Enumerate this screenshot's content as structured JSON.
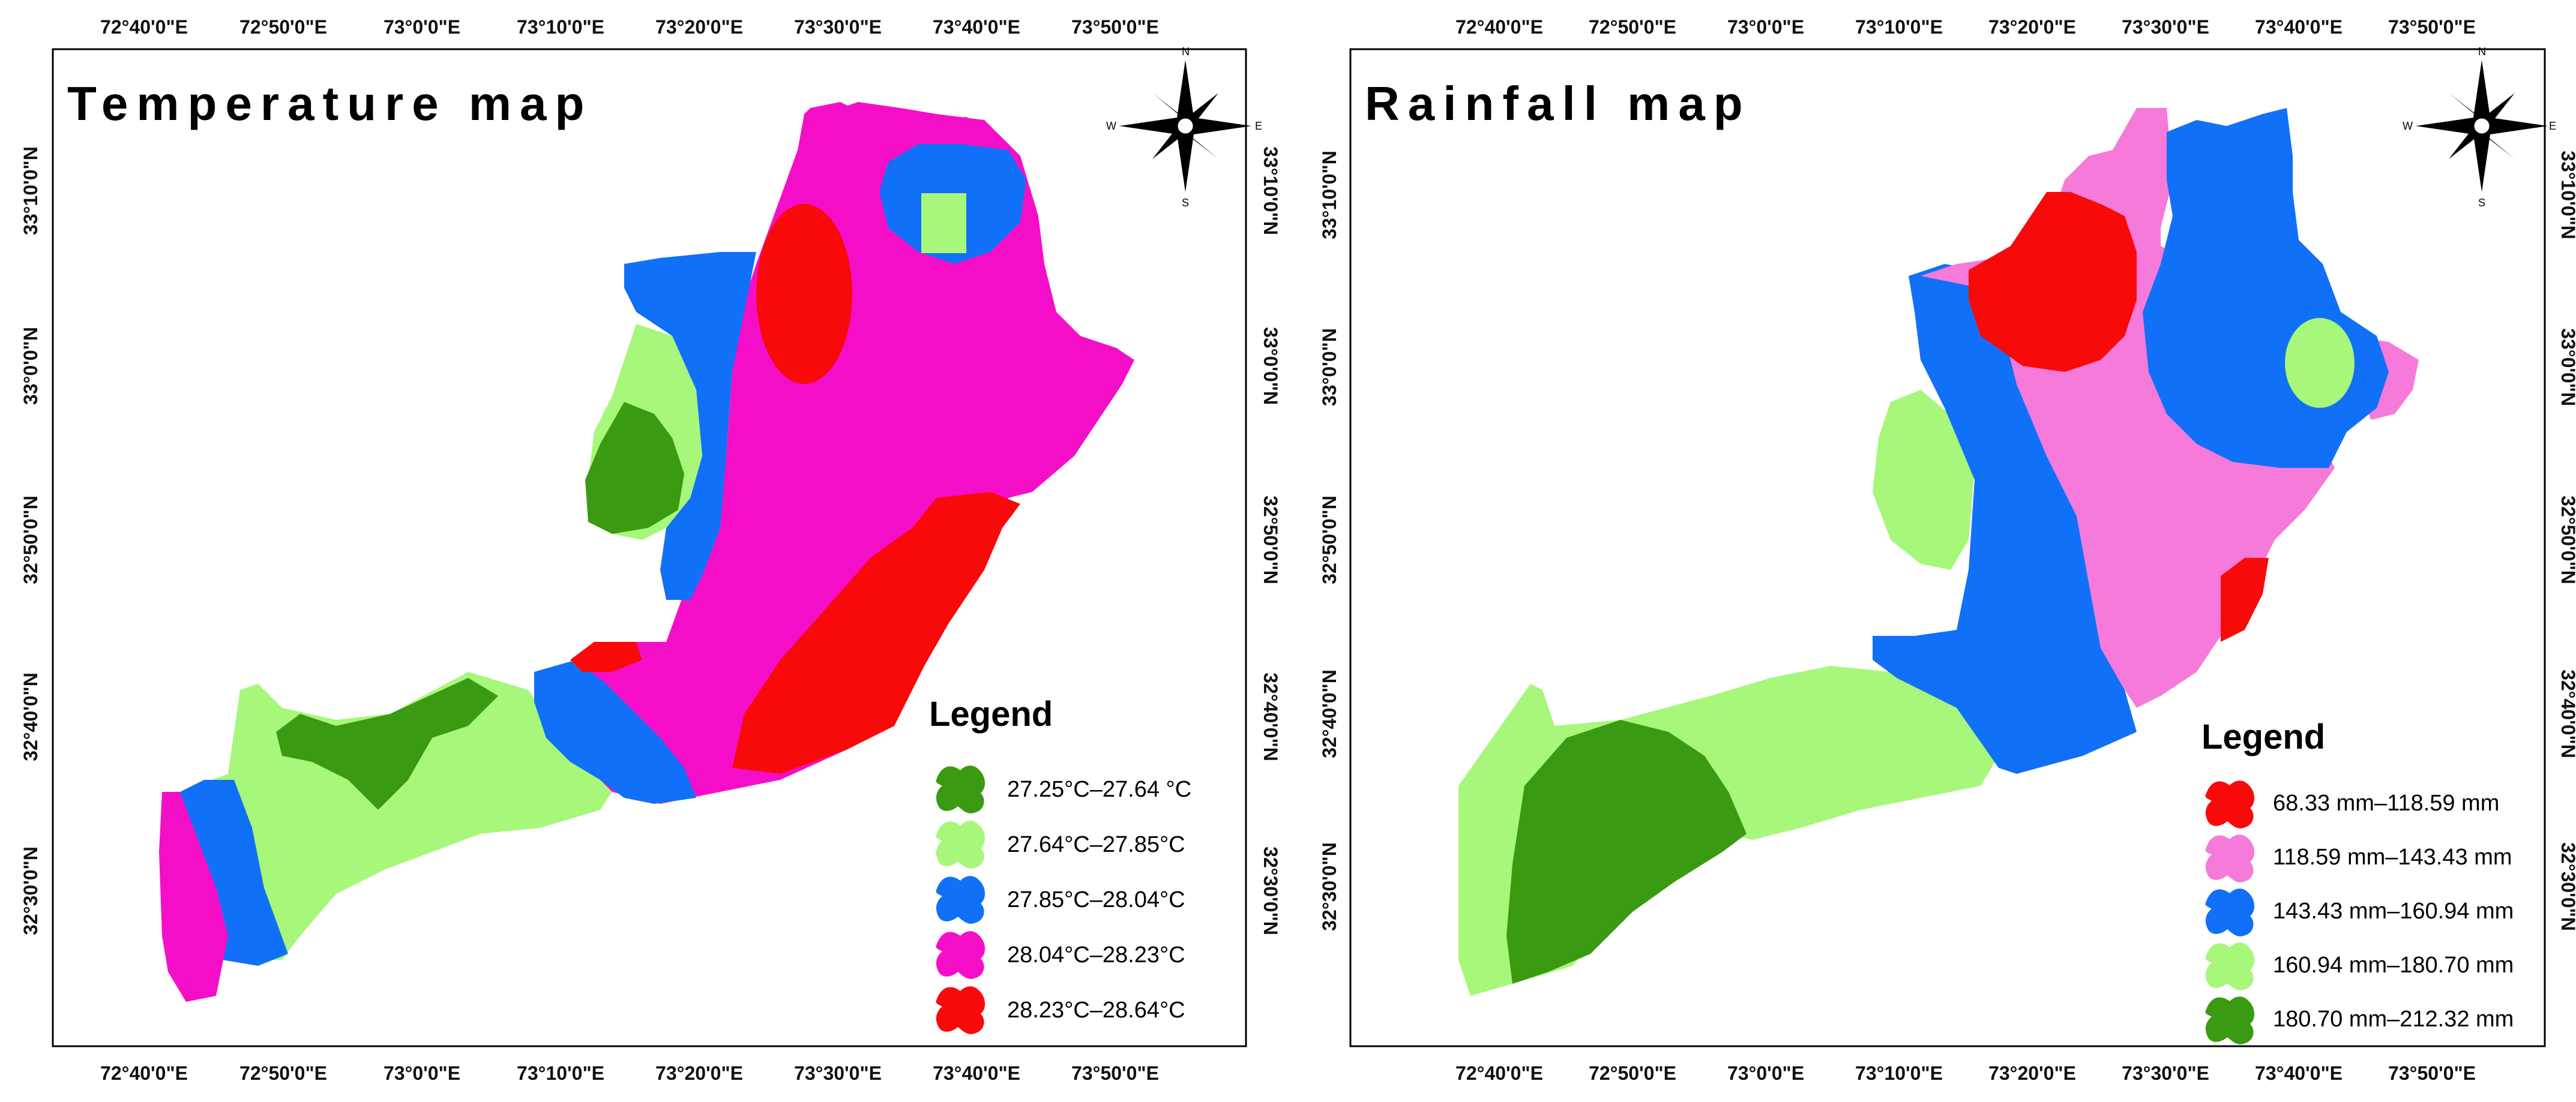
{
  "colors": {
    "dark_green": "#3a9a12",
    "light_green": "#a6f77a",
    "blue": "#1070f8",
    "magenta": "#f50ec8",
    "pink": "#f57ada",
    "red": "#f80a0a"
  },
  "maps": [
    {
      "title": "Temperature map",
      "top_ticks": [
        "72°40'0\"E",
        "72°50'0\"E",
        "73°0'0\"E",
        "73°10'0\"E",
        "73°20'0\"E",
        "73°30'0\"E",
        "73°40'0\"E",
        "73°50'0\"E"
      ],
      "bottom_ticks": [
        "72°40'0\"E",
        "72°50'0\"E",
        "73°0'0\"E",
        "73°10'0\"E",
        "73°20'0\"E",
        "73°30'0\"E",
        "73°40'0\"E",
        "73°50'0\"E"
      ],
      "left_ticks": [
        "33°10'0\"N",
        "33°0'0\"N",
        "32°50'0\"N",
        "32°40'0\"N",
        "32°30'0\"N"
      ],
      "right_ticks": [
        "33°10'0\"N",
        "33°0'0\"N",
        "32°50'0\"N",
        "32°40'0\"N",
        "32°30'0\"N"
      ],
      "legend": {
        "title": "Legend",
        "items": [
          {
            "label": "27.25°C–27.64 °C",
            "color": "#3a9a12"
          },
          {
            "label": "27.64°C–27.85°C",
            "color": "#a6f77a"
          },
          {
            "label": "27.85°C–28.04°C",
            "color": "#1070f8"
          },
          {
            "label": "28.04°C–28.23°C",
            "color": "#f50ec8"
          },
          {
            "label": "28.23°C–28.64°C",
            "color": "#f80a0a"
          }
        ]
      },
      "compass": {
        "north": "N",
        "east": "E",
        "west": "W",
        "south": "S"
      }
    },
    {
      "title": "Rainfall map",
      "top_ticks": [
        "72°40'0\"E",
        "72°50'0\"E",
        "73°0'0\"E",
        "73°10'0\"E",
        "73°20'0\"E",
        "73°30'0\"E",
        "73°40'0\"E",
        "73°50'0\"E"
      ],
      "bottom_ticks": [
        "72°40'0\"E",
        "72°50'0\"E",
        "73°0'0\"E",
        "73°10'0\"E",
        "73°20'0\"E",
        "73°30'0\"E",
        "73°40'0\"E",
        "73°50'0\"E"
      ],
      "left_ticks": [
        "33°10'0\"N",
        "33°0'0\"N",
        "32°50'0\"N",
        "32°40'0\"N",
        "32°30'0\"N"
      ],
      "right_ticks": [
        "33°10'0\"N",
        "33°0'0\"N",
        "32°50'0\"N",
        "32°40'0\"N",
        "32°30'0\"N"
      ],
      "legend": {
        "title": "Legend",
        "items": [
          {
            "label": "68.33 mm–118.59 mm",
            "color": "#f80a0a"
          },
          {
            "label": "118.59 mm–143.43 mm",
            "color": "#f57ada"
          },
          {
            "label": "143.43 mm–160.94 mm",
            "color": "#1070f8"
          },
          {
            "label": "160.94 mm–180.70 mm",
            "color": "#a6f77a"
          },
          {
            "label": "180.70 mm–212.32 mm",
            "color": "#3a9a12"
          }
        ]
      },
      "compass": {
        "north": "N",
        "east": "E",
        "west": "W",
        "south": "S"
      }
    }
  ]
}
